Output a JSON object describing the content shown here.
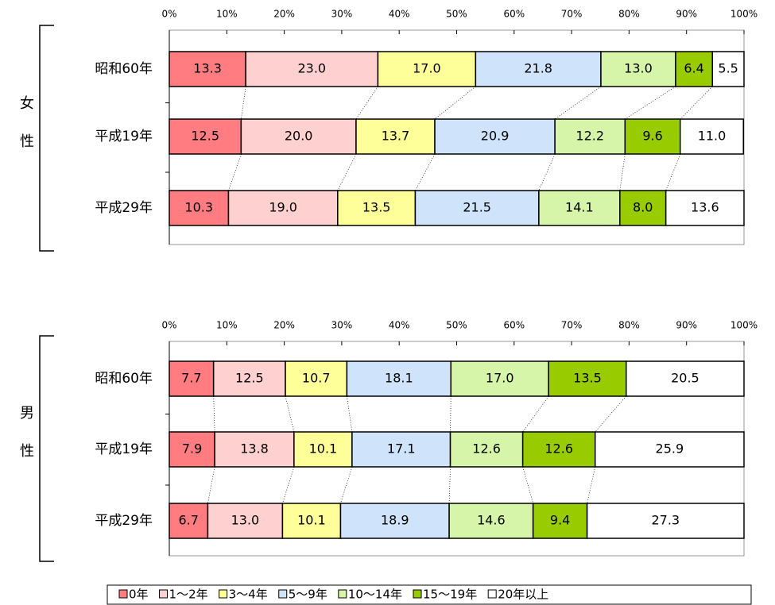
{
  "chart_data": [
    {
      "type": "bar",
      "stacked": true,
      "group": "女性",
      "categories": [
        "昭和60年",
        "平成19年",
        "平成29年"
      ],
      "xlim": [
        0,
        100
      ],
      "xticks": [
        {
          "value": 0,
          "label": "0%"
        },
        {
          "value": 10,
          "label": "10%"
        },
        {
          "value": 20,
          "label": "20%"
        },
        {
          "value": 30,
          "label": "30%"
        },
        {
          "value": 40,
          "label": "40%"
        },
        {
          "value": 50,
          "label": "50%"
        },
        {
          "value": 60,
          "label": "60%"
        },
        {
          "value": 70,
          "label": "70%"
        },
        {
          "value": 80,
          "label": "80%"
        },
        {
          "value": 90,
          "label": "90%"
        },
        {
          "value": 100,
          "label": "100%"
        }
      ],
      "series": [
        {
          "color": "#ff7c80",
          "values": [
            13.3,
            12.5,
            10.3
          ],
          "value_labels": [
            "13.3",
            "12.5",
            "10.3"
          ]
        },
        {
          "color": "#ffd0d0",
          "values": [
            23.0,
            20.0,
            19.0
          ],
          "value_labels": [
            "23.0",
            "20.0",
            "19.0"
          ]
        },
        {
          "color": "#ffff99",
          "values": [
            17.0,
            13.7,
            13.5
          ],
          "value_labels": [
            "17.0",
            "13.7",
            "13.5"
          ]
        },
        {
          "color": "#cfe4fa",
          "values": [
            21.8,
            20.9,
            21.5
          ],
          "value_labels": [
            "21.8",
            "20.9",
            "21.5"
          ]
        },
        {
          "color": "#d6f5a8",
          "values": [
            13.0,
            12.2,
            14.1
          ],
          "value_labels": [
            "13.0",
            "12.2",
            "14.1"
          ]
        },
        {
          "color": "#99cc00",
          "values": [
            6.4,
            9.6,
            8.0
          ],
          "value_labels": [
            "6.4",
            "9.6",
            "8.0"
          ]
        },
        {
          "color": "#ffffff",
          "values": [
            5.5,
            11.0,
            13.6
          ],
          "value_labels": [
            "5.5",
            "11.0",
            "13.6"
          ]
        }
      ]
    },
    {
      "type": "bar",
      "stacked": true,
      "group": "男性",
      "legend": "bottom",
      "categories": [
        "昭和60年",
        "平成19年",
        "平成29年"
      ],
      "xlim": [
        0,
        100
      ],
      "xticks": [
        {
          "value": 0,
          "label": "0%"
        },
        {
          "value": 10,
          "label": "10%"
        },
        {
          "value": 20,
          "label": "20%"
        },
        {
          "value": 30,
          "label": "30%"
        },
        {
          "value": 40,
          "label": "40%"
        },
        {
          "value": 50,
          "label": "50%"
        },
        {
          "value": 60,
          "label": "60%"
        },
        {
          "value": 70,
          "label": "70%"
        },
        {
          "value": 80,
          "label": "80%"
        },
        {
          "value": 90,
          "label": "90%"
        },
        {
          "value": 100,
          "label": "100%"
        }
      ],
      "series": [
        {
          "name": "0年",
          "color": "#ff7c80",
          "values": [
            7.7,
            7.9,
            6.7
          ],
          "value_labels": [
            "7.7",
            "7.9",
            "6.7"
          ]
        },
        {
          "name": "1～2年",
          "color": "#ffd0d0",
          "values": [
            12.5,
            13.8,
            13.0
          ],
          "value_labels": [
            "12.5",
            "13.8",
            "13.0"
          ]
        },
        {
          "name": "3～4年",
          "color": "#ffff99",
          "values": [
            10.7,
            10.1,
            10.1
          ],
          "value_labels": [
            "10.7",
            "10.1",
            "10.1"
          ]
        },
        {
          "name": "5～9年",
          "color": "#cfe4fa",
          "values": [
            18.1,
            17.1,
            18.9
          ],
          "value_labels": [
            "18.1",
            "17.1",
            "18.9"
          ]
        },
        {
          "name": "10～14年",
          "color": "#d6f5a8",
          "values": [
            17.0,
            12.6,
            14.6
          ],
          "value_labels": [
            "17.0",
            "12.6",
            "14.6"
          ]
        },
        {
          "name": "15～19年",
          "color": "#99cc00",
          "values": [
            13.5,
            12.6,
            9.4
          ],
          "value_labels": [
            "13.5",
            "12.6",
            "9.4"
          ]
        },
        {
          "name": "20年以上",
          "color": "#ffffff",
          "values": [
            20.5,
            25.9,
            27.3
          ],
          "value_labels": [
            "20.5",
            "25.9",
            "27.3"
          ]
        }
      ]
    }
  ]
}
